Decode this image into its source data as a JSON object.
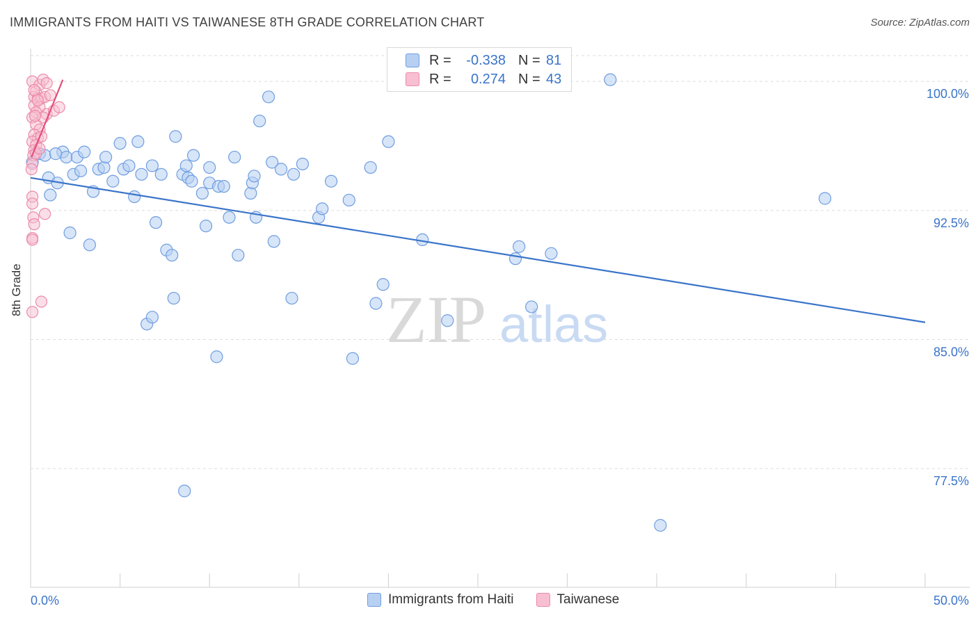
{
  "title": "IMMIGRANTS FROM HAITI VS TAIWANESE 8TH GRADE CORRELATION CHART",
  "source": "Source: ZipAtlas.com",
  "watermark": {
    "zip": "ZIP",
    "atlas": "atlas"
  },
  "colors": {
    "blue": "#3a74c9",
    "blue_fill": "#b7d0f2",
    "blue_stroke": "#6f9de0",
    "pink": "#e2507c",
    "pink_fill": "#f7bfd1",
    "pink_stroke": "#ec8aa9",
    "grid": "#dcdcdc",
    "axis_label": "#3a74c9"
  },
  "legend_top": {
    "rows": [
      {
        "r_label": "R =",
        "r_value": "-0.338",
        "n_label": "N =",
        "n_value": "81",
        "series": "blue"
      },
      {
        "r_label": "R =",
        "r_value": "0.274",
        "n_label": "N =",
        "n_value": "43",
        "series": "pink"
      }
    ]
  },
  "legend_bottom": {
    "items": [
      "Immigrants from Haiti",
      "Taiwanese"
    ]
  },
  "chart_data": {
    "type": "scatter",
    "title": "IMMIGRANTS FROM HAITI VS TAIWANESE 8TH GRADE CORRELATION CHART",
    "xlabel": "",
    "ylabel": "8th Grade",
    "xlim": [
      0,
      50
    ],
    "ylim": [
      70.6,
      101.5
    ],
    "x_tick_labels": [
      "0.0%",
      "50.0%"
    ],
    "y_ticks": [
      77.5,
      85.0,
      92.5,
      100.0
    ],
    "y_tick_labels": [
      "77.5%",
      "85.0%",
      "92.5%",
      "100.0%"
    ],
    "grid": true,
    "legend_position": "bottom",
    "series": [
      {
        "name": "Immigrants from Haiti",
        "color": "#3a74c9",
        "trend": {
          "x": [
            0,
            50
          ],
          "y": [
            94.4,
            86.0
          ]
        },
        "points": [
          [
            0.1,
            95.3
          ],
          [
            0.5,
            95.8
          ],
          [
            0.8,
            95.7
          ],
          [
            1.0,
            94.4
          ],
          [
            1.5,
            94.1
          ],
          [
            1.8,
            95.9
          ],
          [
            2.0,
            95.6
          ],
          [
            2.4,
            94.6
          ],
          [
            2.6,
            95.6
          ],
          [
            2.8,
            94.8
          ],
          [
            3.0,
            95.9
          ],
          [
            1.1,
            93.4
          ],
          [
            3.5,
            93.6
          ],
          [
            3.8,
            94.9
          ],
          [
            4.1,
            95.0
          ],
          [
            4.2,
            95.6
          ],
          [
            4.6,
            94.2
          ],
          [
            5.2,
            94.9
          ],
          [
            5.0,
            96.4
          ],
          [
            5.5,
            95.1
          ],
          [
            5.8,
            93.3
          ],
          [
            6.0,
            96.5
          ],
          [
            6.2,
            94.6
          ],
          [
            6.8,
            95.1
          ],
          [
            7.3,
            94.6
          ],
          [
            7.6,
            90.2
          ],
          [
            7.9,
            89.9
          ],
          [
            7.0,
            91.8
          ],
          [
            8.1,
            96.8
          ],
          [
            8.5,
            94.6
          ],
          [
            8.7,
            95.1
          ],
          [
            8.8,
            94.4
          ],
          [
            9.1,
            95.7
          ],
          [
            9.0,
            94.2
          ],
          [
            9.6,
            93.5
          ],
          [
            10.0,
            94.1
          ],
          [
            9.8,
            91.6
          ],
          [
            10.0,
            95.0
          ],
          [
            10.5,
            93.9
          ],
          [
            10.8,
            93.9
          ],
          [
            11.4,
            95.6
          ],
          [
            11.1,
            92.1
          ],
          [
            11.6,
            89.9
          ],
          [
            12.3,
            93.5
          ],
          [
            12.4,
            94.1
          ],
          [
            12.5,
            94.5
          ],
          [
            12.6,
            92.1
          ],
          [
            12.8,
            97.7
          ],
          [
            13.5,
            95.3
          ],
          [
            14.0,
            94.9
          ],
          [
            13.3,
            99.1
          ],
          [
            13.6,
            90.7
          ],
          [
            14.7,
            94.6
          ],
          [
            15.2,
            95.2
          ],
          [
            16.1,
            92.1
          ],
          [
            16.3,
            92.6
          ],
          [
            16.8,
            94.2
          ],
          [
            17.8,
            93.1
          ],
          [
            19.0,
            95.0
          ],
          [
            20.0,
            96.5
          ],
          [
            19.7,
            88.2
          ],
          [
            19.3,
            87.1
          ],
          [
            21.9,
            90.8
          ],
          [
            23.3,
            86.1
          ],
          [
            2.2,
            91.2
          ],
          [
            3.3,
            90.5
          ],
          [
            8.0,
            87.4
          ],
          [
            6.5,
            85.9
          ],
          [
            6.8,
            86.3
          ],
          [
            10.4,
            84.0
          ],
          [
            14.6,
            87.4
          ],
          [
            18.0,
            83.9
          ],
          [
            8.6,
            76.2
          ],
          [
            27.3,
            90.4
          ],
          [
            27.1,
            89.7
          ],
          [
            28.0,
            86.9
          ],
          [
            29.1,
            90.0
          ],
          [
            32.4,
            100.1
          ],
          [
            44.4,
            93.2
          ],
          [
            35.2,
            74.2
          ],
          [
            1.4,
            95.8
          ]
        ]
      },
      {
        "name": "Taiwanese",
        "color": "#e2507c",
        "trend": {
          "x": [
            0.05,
            1.8
          ],
          "y": [
            95.6,
            100.1
          ]
        },
        "points": [
          [
            0.1,
            100.0
          ],
          [
            0.3,
            99.4
          ],
          [
            0.5,
            99.8
          ],
          [
            0.7,
            100.1
          ],
          [
            0.9,
            99.9
          ],
          [
            0.2,
            99.1
          ],
          [
            0.4,
            99.0
          ],
          [
            0.6,
            99.0
          ],
          [
            0.8,
            99.1
          ],
          [
            1.1,
            99.2
          ],
          [
            0.2,
            98.6
          ],
          [
            0.5,
            98.5
          ],
          [
            0.3,
            98.2
          ],
          [
            0.9,
            98.1
          ],
          [
            1.3,
            98.3
          ],
          [
            1.6,
            98.5
          ],
          [
            0.1,
            97.9
          ],
          [
            0.3,
            97.5
          ],
          [
            0.5,
            97.2
          ],
          [
            0.2,
            96.9
          ],
          [
            0.4,
            96.7
          ],
          [
            0.1,
            96.5
          ],
          [
            0.3,
            96.3
          ],
          [
            0.2,
            96.0
          ],
          [
            0.15,
            95.7
          ],
          [
            0.1,
            95.2
          ],
          [
            0.05,
            94.9
          ],
          [
            0.1,
            93.3
          ],
          [
            0.1,
            92.9
          ],
          [
            0.15,
            92.1
          ],
          [
            0.2,
            91.7
          ],
          [
            0.1,
            90.9
          ],
          [
            0.1,
            90.8
          ],
          [
            0.8,
            92.3
          ],
          [
            0.6,
            87.2
          ],
          [
            0.1,
            86.6
          ],
          [
            0.3,
            95.8
          ],
          [
            0.5,
            96.1
          ],
          [
            0.7,
            97.9
          ],
          [
            0.2,
            99.5
          ],
          [
            0.4,
            98.9
          ],
          [
            0.6,
            96.8
          ],
          [
            0.25,
            98.0
          ]
        ]
      }
    ]
  }
}
